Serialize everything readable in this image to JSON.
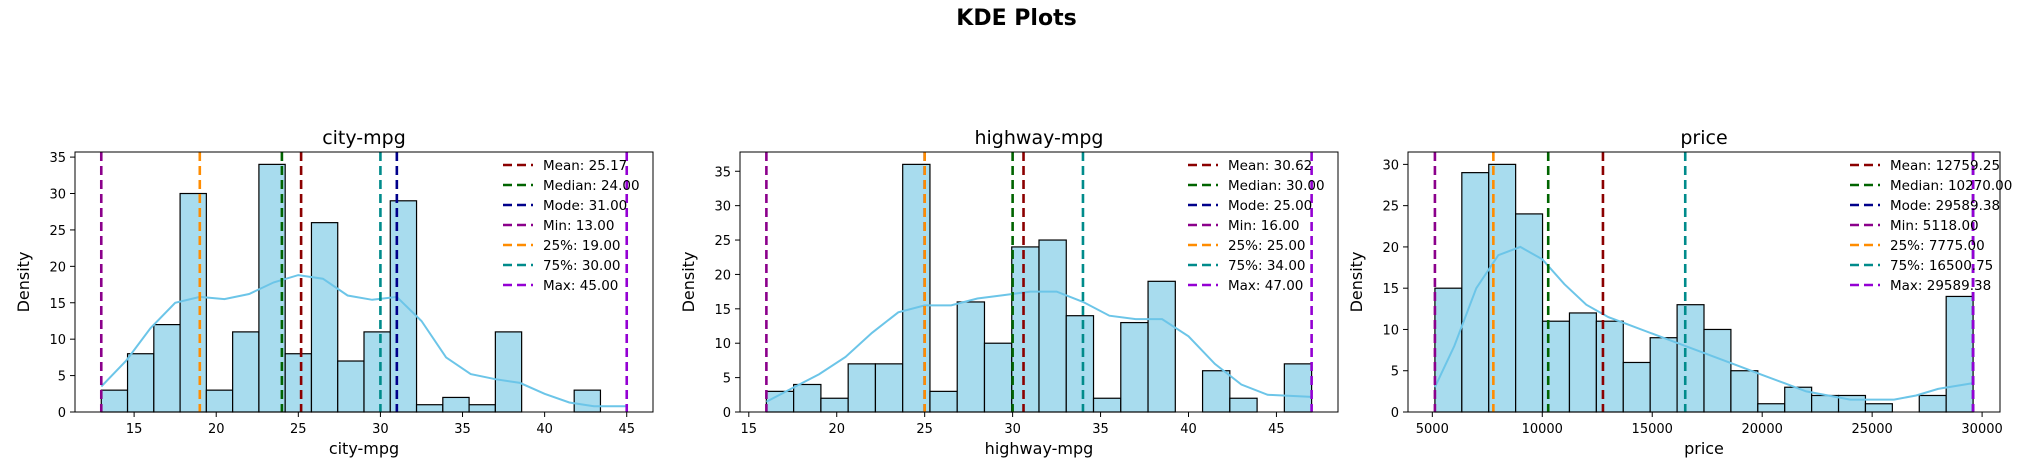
{
  "figure_title": "KDE Plots",
  "colors": {
    "bar_fill": "#a8dcee",
    "bar_edge": "#000000",
    "kde": "#6cc5e8",
    "mean": "#8b0000",
    "median": "#006400",
    "mode": "#00008b",
    "min": "#8b008b",
    "q25": "#ff8c00",
    "q75": "#008b8b",
    "max": "#9400d3"
  },
  "chart_data": [
    {
      "type": "bar",
      "title": "city-mpg",
      "xlabel": "city-mpg",
      "ylabel": "Density",
      "xlim": [
        11.4,
        46.6
      ],
      "ylim": [
        0,
        35.7
      ],
      "xticks": [
        15,
        20,
        25,
        30,
        35,
        40,
        45
      ],
      "yticks": [
        0,
        5,
        10,
        15,
        20,
        25,
        30,
        35
      ],
      "bin_start": 13,
      "bin_width": 1.6,
      "counts": [
        3,
        8,
        12,
        30,
        3,
        11,
        34,
        8,
        26,
        7,
        11,
        29,
        1,
        2,
        1,
        11,
        0,
        0,
        3
      ],
      "kde_points": [
        [
          13,
          3.5
        ],
        [
          14.5,
          7
        ],
        [
          16,
          11.5
        ],
        [
          17.5,
          15
        ],
        [
          19,
          15.8
        ],
        [
          20.5,
          15.5
        ],
        [
          22,
          16.2
        ],
        [
          23.5,
          17.8
        ],
        [
          25,
          18.8
        ],
        [
          26.5,
          18.3
        ],
        [
          28,
          16
        ],
        [
          29.5,
          15.4
        ],
        [
          31,
          15.8
        ],
        [
          32.5,
          12.5
        ],
        [
          34,
          7.5
        ],
        [
          35.5,
          5.2
        ],
        [
          37,
          4.5
        ],
        [
          38.5,
          4
        ],
        [
          40,
          2.5
        ],
        [
          41.5,
          1.3
        ],
        [
          43,
          0.8
        ],
        [
          45,
          0.8
        ]
      ],
      "lines": [
        {
          "key": "mean",
          "label": "Mean: 25.17",
          "value": 25.17
        },
        {
          "key": "median",
          "label": "Median: 24.00",
          "value": 24.0
        },
        {
          "key": "mode",
          "label": "Mode: 31.00",
          "value": 31.0
        },
        {
          "key": "min",
          "label": "Min: 13.00",
          "value": 13.0
        },
        {
          "key": "q25",
          "label": "25%: 19.00",
          "value": 19.0
        },
        {
          "key": "q75",
          "label": "75%: 30.00",
          "value": 30.0
        },
        {
          "key": "max",
          "label": "Max: 45.00",
          "value": 45.0
        }
      ],
      "legend_position": "top-right"
    },
    {
      "type": "bar",
      "title": "highway-mpg",
      "xlabel": "highway-mpg",
      "ylabel": "Density",
      "xlim": [
        14.5,
        48.5
      ],
      "ylim": [
        0,
        37.8
      ],
      "xticks": [
        15,
        20,
        25,
        30,
        35,
        40,
        45
      ],
      "yticks": [
        0,
        5,
        10,
        15,
        20,
        25,
        30,
        35
      ],
      "bin_start": 16,
      "bin_width": 1.55,
      "counts": [
        3,
        4,
        2,
        7,
        7,
        36,
        3,
        16,
        10,
        24,
        25,
        14,
        2,
        13,
        19,
        0,
        6,
        2,
        0,
        7
      ],
      "kde_points": [
        [
          16,
          1.5
        ],
        [
          17.5,
          3.5
        ],
        [
          19,
          5.5
        ],
        [
          20.5,
          8
        ],
        [
          22,
          11.5
        ],
        [
          23.5,
          14.5
        ],
        [
          25,
          15.5
        ],
        [
          26.5,
          15.5
        ],
        [
          28,
          16.5
        ],
        [
          29.5,
          17
        ],
        [
          31,
          17.5
        ],
        [
          32.5,
          17.5
        ],
        [
          34,
          16
        ],
        [
          35.5,
          14
        ],
        [
          37,
          13.5
        ],
        [
          38.5,
          13.5
        ],
        [
          40,
          11
        ],
        [
          41.5,
          7
        ],
        [
          43,
          4
        ],
        [
          44.5,
          2.5
        ],
        [
          47,
          2.2
        ]
      ],
      "lines": [
        {
          "key": "mean",
          "label": "Mean: 30.62",
          "value": 30.62
        },
        {
          "key": "median",
          "label": "Median: 30.00",
          "value": 30.0
        },
        {
          "key": "mode",
          "label": "Mode: 25.00",
          "value": 25.0
        },
        {
          "key": "min",
          "label": "Min: 16.00",
          "value": 16.0
        },
        {
          "key": "q25",
          "label": "25%: 25.00",
          "value": 25.0
        },
        {
          "key": "q75",
          "label": "75%: 34.00",
          "value": 34.0
        },
        {
          "key": "max",
          "label": "Max: 47.00",
          "value": 47.0
        }
      ],
      "legend_position": "top-right"
    },
    {
      "type": "bar",
      "title": "price",
      "xlabel": "price",
      "ylabel": "Density",
      "xlim": [
        3894,
        30814
      ],
      "ylim": [
        0,
        31.5
      ],
      "xticks": [
        5000,
        10000,
        15000,
        20000,
        25000,
        30000
      ],
      "xtick_labels": [
        "5000",
        "10000",
        "15000",
        "20000",
        "25000",
        "30000"
      ],
      "yticks": [
        0,
        5,
        10,
        15,
        20,
        25,
        30
      ],
      "bin_start": 5118,
      "bin_width": 1223.6,
      "counts": [
        15,
        29,
        30,
        24,
        11,
        12,
        11,
        6,
        9,
        13,
        10,
        5,
        1,
        3,
        2,
        2,
        1,
        0,
        2,
        14
      ],
      "kde_points": [
        [
          5118,
          3
        ],
        [
          6000,
          8
        ],
        [
          7000,
          15
        ],
        [
          8000,
          19
        ],
        [
          9000,
          20
        ],
        [
          10000,
          18.5
        ],
        [
          11000,
          15.5
        ],
        [
          12000,
          13
        ],
        [
          13000,
          11.5
        ],
        [
          14000,
          10.5
        ],
        [
          15000,
          9.5
        ],
        [
          16000,
          8.5
        ],
        [
          17000,
          7.5
        ],
        [
          18000,
          6.5
        ],
        [
          19000,
          5.5
        ],
        [
          20000,
          4.5
        ],
        [
          21000,
          3.5
        ],
        [
          22000,
          2.5
        ],
        [
          23000,
          2
        ],
        [
          24000,
          1.5
        ],
        [
          25000,
          1.5
        ],
        [
          26000,
          1.5
        ],
        [
          27000,
          2
        ],
        [
          28000,
          2.8
        ],
        [
          29589,
          3.5
        ]
      ],
      "lines": [
        {
          "key": "mean",
          "label": "Mean: 12759.25",
          "value": 12759.25
        },
        {
          "key": "median",
          "label": "Median: 10270.00",
          "value": 10270.0
        },
        {
          "key": "mode",
          "label": "Mode: 29589.38",
          "value": 29589.38
        },
        {
          "key": "min",
          "label": "Min: 5118.00",
          "value": 5118.0
        },
        {
          "key": "q25",
          "label": "25%: 7775.00",
          "value": 7775.0
        },
        {
          "key": "q75",
          "label": "75%: 16500.75",
          "value": 16500.75
        },
        {
          "key": "max",
          "label": "Max: 29589.38",
          "value": 29589.38
        }
      ],
      "legend_position": "top-right"
    }
  ]
}
